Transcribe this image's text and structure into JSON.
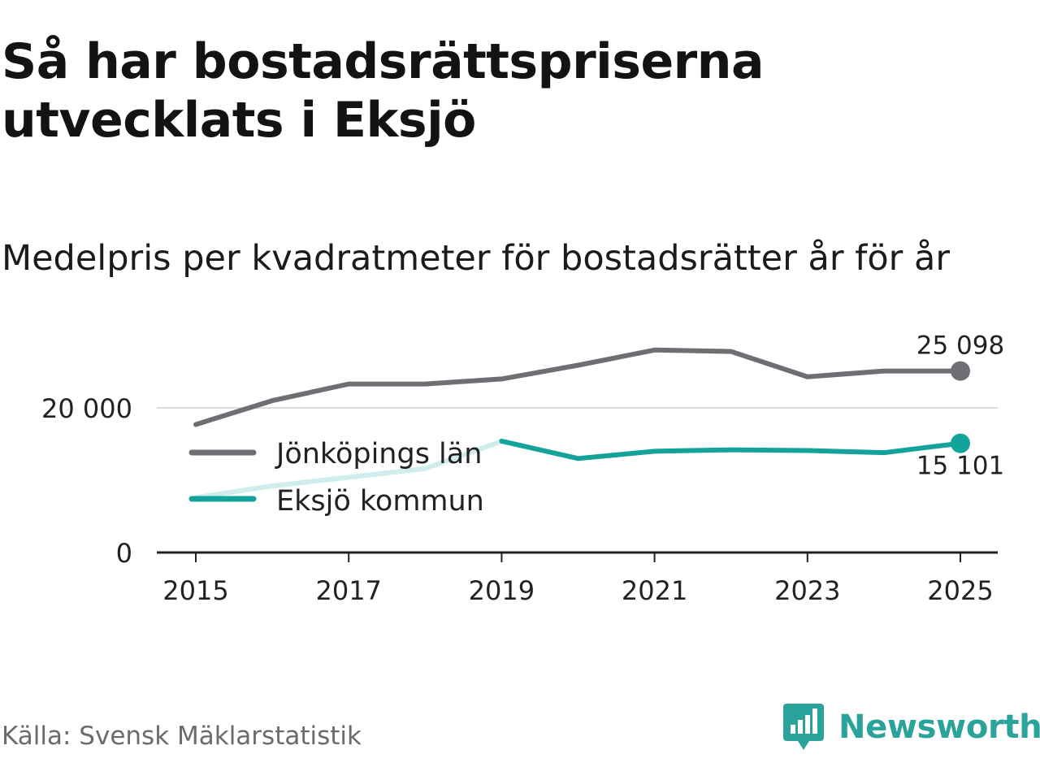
{
  "title": "Så har bostadsrättspriserna utvecklats i Eksjö",
  "subtitle": "Medelpris per kvadratmeter för bostadsrätter år för år",
  "source": "Källa: Svensk Mäklarstatistik",
  "brand": {
    "name": "Newsworthy",
    "logo_icon": "bar-chart-speech-bubble-icon",
    "color": "#2aa39a"
  },
  "colors": {
    "lan": "#6f6e75",
    "kommun": "#14a39a",
    "kommun_estimated": "#cdeeeb",
    "grid": "#dcdcdc",
    "axis": "#222222",
    "text": "#222222"
  },
  "chart_data": {
    "type": "line",
    "title": "Medelpris per kvadratmeter för bostadsrätter år för år",
    "xlabel": "",
    "ylabel": "",
    "x": [
      2015,
      2016,
      2017,
      2018,
      2019,
      2020,
      2021,
      2022,
      2023,
      2024,
      2025
    ],
    "xlim": [
      2014.5,
      2025.5
    ],
    "ylim": [
      0,
      27000
    ],
    "y_ticks": [
      0,
      20000
    ],
    "y_tick_labels": [
      "0",
      "20 000"
    ],
    "x_ticks": [
      2015,
      2017,
      2019,
      2021,
      2023,
      2025
    ],
    "x_tick_labels": [
      "2015",
      "2017",
      "2019",
      "2021",
      "2023",
      "2025"
    ],
    "grid": true,
    "legend_position": "left, inside plot",
    "series": [
      {
        "name": "Jönköpings län",
        "key": "lan",
        "values": [
          17700,
          21000,
          23300,
          23300,
          24000,
          25900,
          28000,
          27800,
          24300,
          25098,
          25098
        ],
        "end_label": "25 098"
      },
      {
        "name": "Eksjö kommun",
        "key": "kommun",
        "values": [
          7600,
          9200,
          10400,
          11600,
          15400,
          13000,
          14000,
          14200,
          14100,
          13800,
          15101
        ],
        "estimated_until": 2019,
        "end_label": "15 101"
      }
    ]
  }
}
